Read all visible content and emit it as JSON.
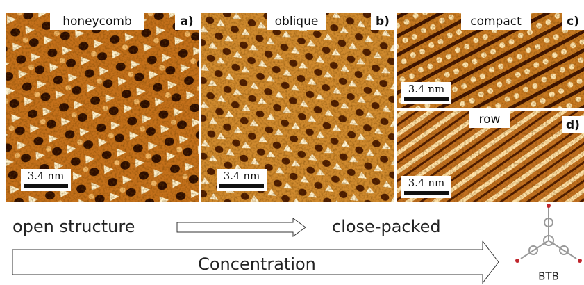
{
  "panels": [
    {
      "name": "honeycomb",
      "letter": "a)",
      "scale": "3.4 nm"
    },
    {
      "name": "oblique",
      "letter": "b)",
      "scale": "3.4 nm"
    },
    {
      "name": "compact",
      "letter": "c)",
      "scale": "3.4 nm"
    },
    {
      "name": "row",
      "letter": "d)",
      "scale": "3.4 nm"
    }
  ],
  "arrow_start": "open structure",
  "arrow_end": "close-packed",
  "axis_label": "Concentration",
  "molecule": "BTB"
}
